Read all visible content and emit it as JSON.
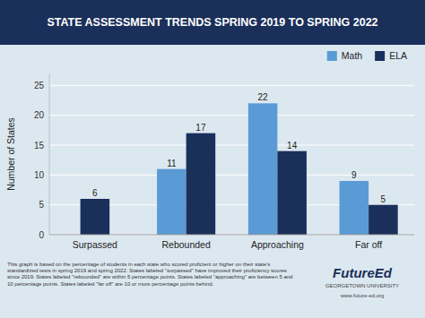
{
  "chart_data": {
    "type": "bar",
    "title": "STATE ASSESSMENT TRENDS SPRING 2019 TO SPRING 2022",
    "categories": [
      "Surpassed",
      "Rebounded",
      "Approaching",
      "Far off"
    ],
    "series": [
      {
        "name": "Math",
        "color": "#5b9bd5",
        "values": [
          null,
          11,
          22,
          9
        ]
      },
      {
        "name": "ELA",
        "color": "#1a2f5a",
        "values": [
          6,
          17,
          14,
          5
        ]
      }
    ],
    "y_label": "Number of States",
    "ylim": [
      0,
      27
    ],
    "yticks": [
      0,
      5,
      10,
      15,
      20,
      25
    ],
    "grid": true,
    "legend": "upper right",
    "data_labels": true,
    "annotations": [
      "This graph is based on the percentage of students in each state who scored proficient or higher on their state's standardized tests in spring 2019 and spring 2022. States labeled \"surpassed\" have improved their proficiency scores since 2019. States labeled \"rebounded\" are within 5 percentage points. States labeled \"approaching\" are between 5 and 10 percentage points. States labeled \"far off\" are 10 or more percentage points behind.",
      "FutureEd",
      "GEORGETOWN UNIVERSITY",
      "www.future-ed.org"
    ]
  }
}
